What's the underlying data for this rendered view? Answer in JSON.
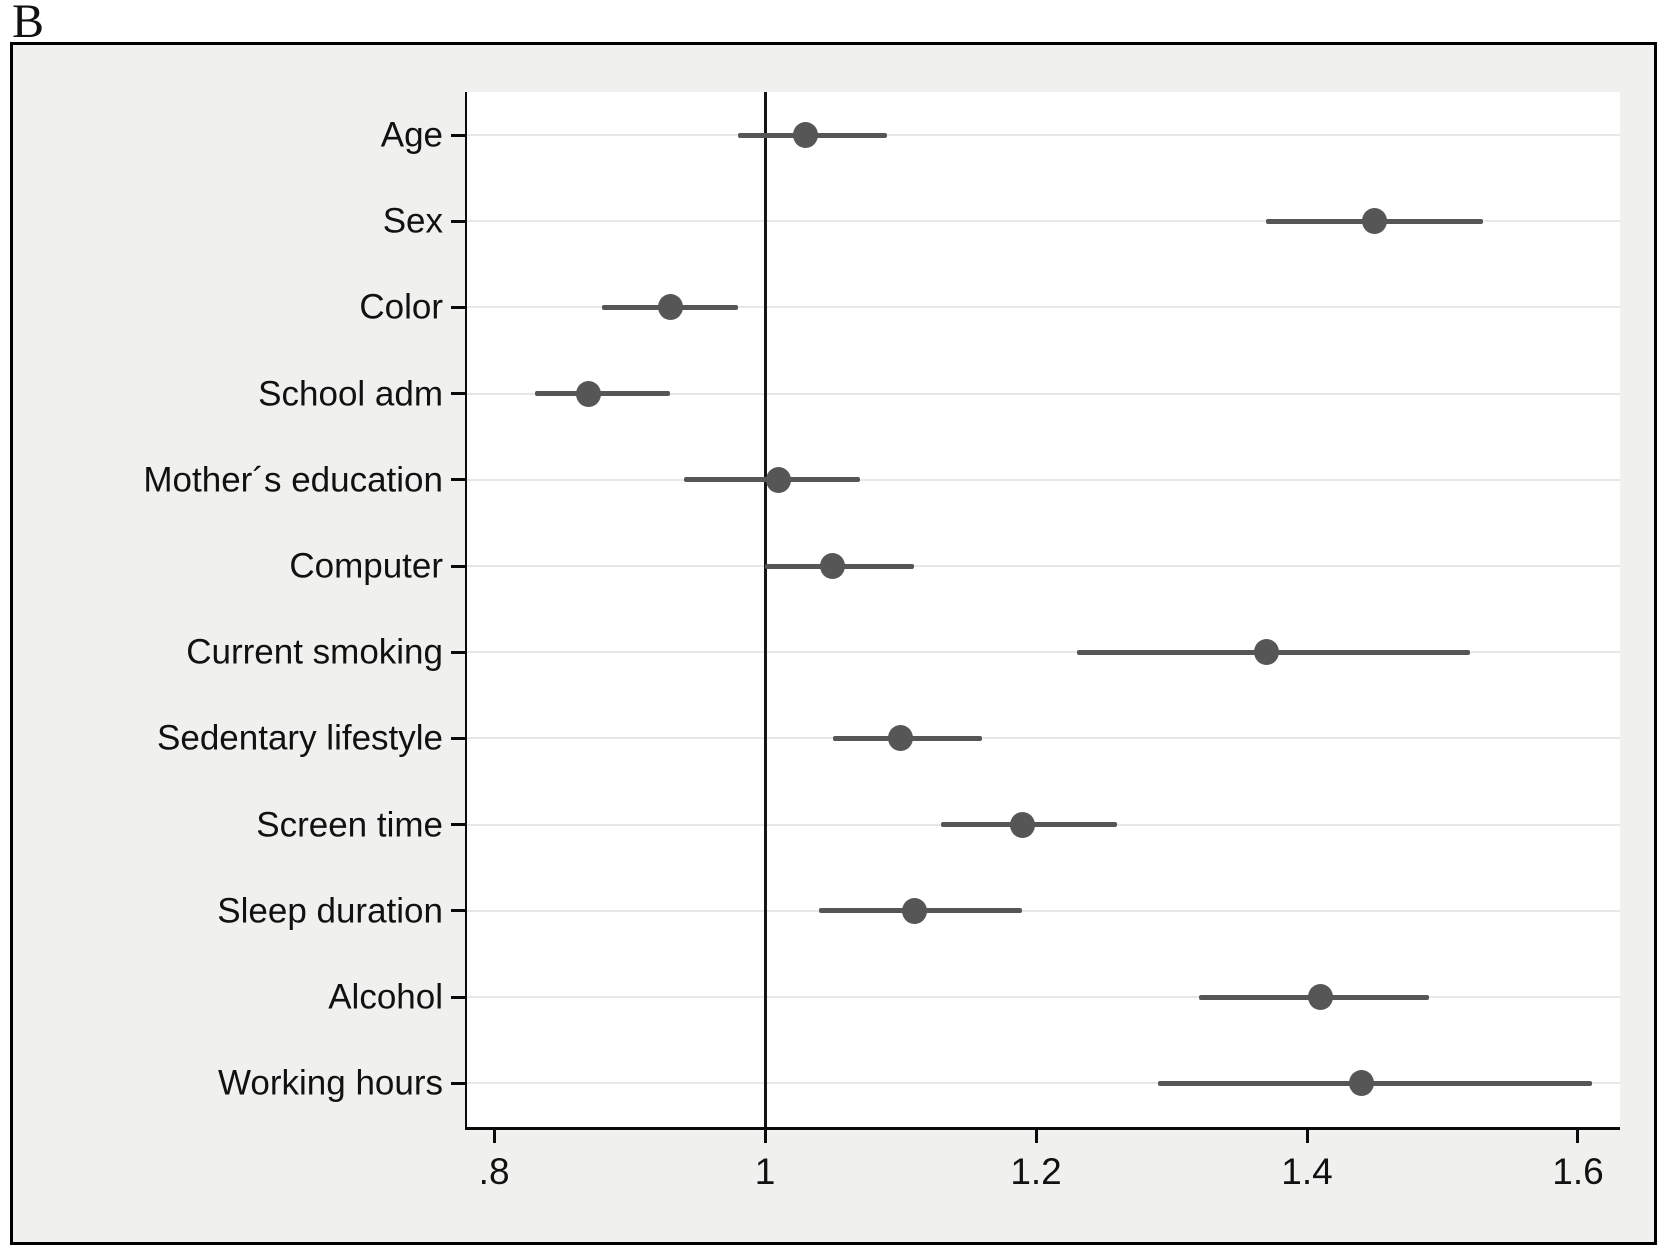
{
  "panel_label": "B",
  "chart_data": {
    "type": "scatter",
    "subtype": "forest-plot",
    "title": "",
    "xlabel": "",
    "ylabel": "",
    "legend": null,
    "grid": "horizontal",
    "xlim": [
      0.78,
      1.631
    ],
    "reference_line_x": 1,
    "x_ticks": [
      {
        "value": 0.8,
        "label": ".8"
      },
      {
        "value": 1.0,
        "label": "1"
      },
      {
        "value": 1.2,
        "label": "1.2"
      },
      {
        "value": 1.4,
        "label": "1.4"
      },
      {
        "value": 1.6,
        "label": "1.6"
      }
    ],
    "categories": [
      "Age",
      "Sex",
      "Color",
      "School adm",
      "Mother´s education",
      "Computer",
      "Current smoking",
      "Sedentary lifestyle",
      "Screen time",
      "Sleep duration",
      "Alcohol",
      "Working hours"
    ],
    "series": [
      {
        "name": "estimate-with-95ci",
        "points": [
          {
            "category": "Age",
            "estimate": 1.03,
            "ci_low": 0.98,
            "ci_high": 1.09
          },
          {
            "category": "Sex",
            "estimate": 1.45,
            "ci_low": 1.37,
            "ci_high": 1.53
          },
          {
            "category": "Color",
            "estimate": 0.93,
            "ci_low": 0.88,
            "ci_high": 0.98
          },
          {
            "category": "School adm",
            "estimate": 0.87,
            "ci_low": 0.83,
            "ci_high": 0.93
          },
          {
            "category": "Mother´s education",
            "estimate": 1.01,
            "ci_low": 0.94,
            "ci_high": 1.07
          },
          {
            "category": "Computer",
            "estimate": 1.05,
            "ci_low": 1.0,
            "ci_high": 1.11
          },
          {
            "category": "Current smoking",
            "estimate": 1.37,
            "ci_low": 1.23,
            "ci_high": 1.52
          },
          {
            "category": "Sedentary lifestyle",
            "estimate": 1.1,
            "ci_low": 1.05,
            "ci_high": 1.16
          },
          {
            "category": "Screen time",
            "estimate": 1.19,
            "ci_low": 1.13,
            "ci_high": 1.26
          },
          {
            "category": "Sleep duration",
            "estimate": 1.11,
            "ci_low": 1.04,
            "ci_high": 1.19
          },
          {
            "category": "Alcohol",
            "estimate": 1.41,
            "ci_low": 1.32,
            "ci_high": 1.49
          },
          {
            "category": "Working hours",
            "estimate": 1.44,
            "ci_low": 1.29,
            "ci_high": 1.61
          }
        ]
      }
    ],
    "colors": {
      "marker": "#565656",
      "ci_line": "#565656",
      "reference_line": "#141414",
      "gridline": "#e7e7e7",
      "axis_line": "#0a0a0a",
      "plot_bg": "#ffffff",
      "outer_bg": "#f0f0ee",
      "border": "#000000"
    }
  }
}
